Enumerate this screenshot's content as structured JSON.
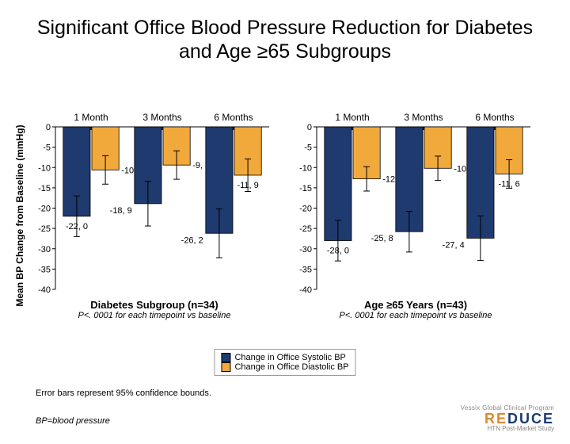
{
  "title": "Significant Office Blood Pressure Reduction for Diabetes and Age ≥65 Subgroups",
  "yaxis_label": "Mean BP Change from Baseline (mmHg)",
  "ylim": [
    -40,
    0
  ],
  "ytick_step": 5,
  "x_categories": [
    "1 Month",
    "3 Months",
    "6 Months"
  ],
  "colors": {
    "systolic": "#1f3a6e",
    "diastolic": "#f2a93b",
    "bar_border": "#000000",
    "error_bar": "#000000",
    "text": "#000000"
  },
  "bar_width": 0.38,
  "font_sizes": {
    "title": 25,
    "axis_label": 12,
    "tick": 11,
    "data_label": 11,
    "cat_label": 12,
    "subtitle": 13,
    "p_text": 11,
    "legend": 11,
    "footnote": 11
  },
  "panels": [
    {
      "subtitle": "Diabetes Subgroup (n=34)",
      "p_text": "P<. 0001 for each timepoint vs baseline",
      "series": [
        {
          "name": "systolic",
          "values": [
            -22.0,
            -18.9,
            -26.2
          ],
          "labels": [
            "-22, 0",
            "-18, 9",
            "-26, 2"
          ],
          "err_low": [
            5,
            5.5,
            6
          ],
          "err_high": [
            5,
            5.5,
            6
          ]
        },
        {
          "name": "diastolic",
          "values": [
            -10.6,
            -9.4,
            -11.9
          ],
          "labels": [
            "-10, 6",
            "-9, 4",
            "-11, 9"
          ],
          "err_low": [
            3.5,
            3.5,
            4
          ],
          "err_high": [
            3.5,
            3.5,
            4
          ]
        }
      ]
    },
    {
      "subtitle": "Age ≥65 Years (n=43)",
      "p_text": "P<. 0001 for each timepoint vs baseline",
      "series": [
        {
          "name": "systolic",
          "values": [
            -28.0,
            -25.8,
            -27.4
          ],
          "labels": [
            "-28, 0",
            "-25, 8",
            "-27, 4"
          ],
          "err_low": [
            5,
            5,
            5.5
          ],
          "err_high": [
            5,
            5,
            5.5
          ]
        },
        {
          "name": "diastolic",
          "values": [
            -12.8,
            -10.2,
            -11.6
          ],
          "labels": [
            "-12, 8",
            "-10, 2",
            "-11, 6"
          ],
          "err_low": [
            3,
            3,
            3.5
          ],
          "err_high": [
            3,
            3,
            3.5
          ]
        }
      ]
    }
  ],
  "legend": {
    "items": [
      {
        "color_key": "systolic",
        "label": "Change in Office Systolic BP"
      },
      {
        "color_key": "diastolic",
        "label": "Change in Office Diastolic BP"
      }
    ]
  },
  "footnote1": "Error bars represent 95% confidence bounds.",
  "footnote2": "BP=blood pressure",
  "logo": {
    "small": "Vessix Global Clinical Program",
    "big_colors": {
      "RE": "#d78a2e",
      "DUCE": "#1f3a6e"
    },
    "big1": "RE",
    "big2": "DUCE",
    "sub": "HTN Post-Market Study"
  }
}
